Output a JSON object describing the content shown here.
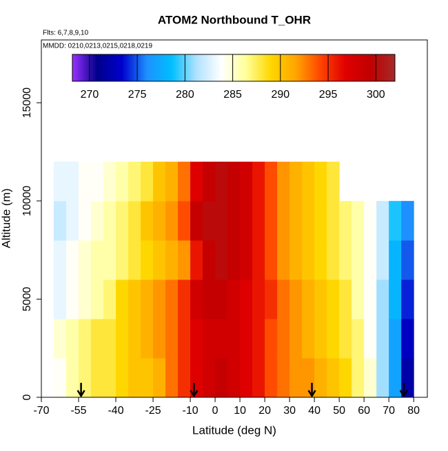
{
  "chart_data": {
    "type": "heatmap",
    "title": "ATOM2 Northbound T_OHR",
    "annotations": [
      "Flts: 6,7,8,9,10",
      "MMDD: 0210,0213,0215,0218,0219"
    ],
    "x_label": "Latitude (deg N)",
    "y_label": "Altitude (m)",
    "xlim": [
      -70,
      85.5
    ],
    "ylim": [
      0,
      18200
    ],
    "xticks": [
      -70,
      -55,
      -40,
      -25,
      -10,
      0,
      10,
      20,
      30,
      40,
      50,
      60,
      70,
      80
    ],
    "yticks": [
      0,
      5000,
      10000,
      15000
    ],
    "x_edges": [
      -65,
      -60,
      -55,
      -50,
      -45,
      -40,
      -35,
      -30,
      -25,
      -20,
      -15,
      -10,
      -5,
      0,
      5,
      10,
      15,
      20,
      25,
      30,
      35,
      40,
      45,
      50,
      55,
      60,
      65,
      70,
      75,
      80
    ],
    "y_edges": [
      0,
      2000,
      4000,
      6000,
      8000,
      10000,
      12000
    ],
    "z": [
      [
        284,
        286,
        287,
        288,
        288,
        289,
        290,
        290,
        291,
        293,
        295,
        297,
        298,
        299,
        298,
        297,
        296,
        294,
        293,
        292,
        292,
        291,
        290,
        289,
        287,
        285,
        281,
        277,
        272
      ],
      [
        285,
        286,
        287,
        288,
        288,
        289,
        290,
        291,
        292,
        293,
        295,
        297,
        298,
        298,
        298,
        297,
        296,
        294,
        293,
        292,
        291,
        290,
        289,
        288,
        287,
        284,
        281,
        277,
        273
      ],
      [
        283,
        284,
        285,
        286,
        287,
        289,
        290,
        291,
        292,
        293,
        295,
        298,
        299,
        299,
        298,
        297,
        296,
        295,
        293,
        292,
        291,
        290,
        289,
        288,
        286,
        284,
        281,
        278,
        274
      ],
      [
        283,
        284,
        285,
        286,
        286,
        287,
        288,
        289,
        290,
        291,
        292,
        296,
        299,
        300,
        299,
        298,
        296,
        294,
        292,
        291,
        290,
        289,
        288,
        287,
        286,
        284,
        282,
        278,
        275
      ],
      [
        282,
        283,
        284,
        285,
        286,
        287,
        288,
        290,
        291,
        292,
        294,
        299,
        300,
        300,
        299,
        298,
        296,
        294,
        292,
        291,
        290,
        289,
        288,
        287,
        286,
        284,
        282,
        279,
        276
      ],
      [
        283,
        283,
        284,
        284,
        285,
        286,
        287,
        288,
        290,
        291,
        293,
        297,
        299,
        300,
        299,
        298,
        296,
        294,
        292,
        291,
        290,
        289,
        288,
        null,
        null,
        null,
        null,
        null,
        null
      ]
    ],
    "arrows": [
      -54,
      -8.5,
      39,
      76
    ],
    "colorbar": {
      "lim": [
        268.2,
        302
      ],
      "ticks": [
        270,
        275,
        280,
        285,
        290,
        295,
        300
      ],
      "colors": [
        "#9b30ff",
        "#00008b",
        "#0000cd",
        "#1e90ff",
        "#00bfff",
        "#b0e2ff",
        "#ffffff",
        "#ffff99",
        "#ffd700",
        "#ffa500",
        "#ff4500",
        "#e00000",
        "#c00000",
        "#a52a2a"
      ]
    }
  }
}
